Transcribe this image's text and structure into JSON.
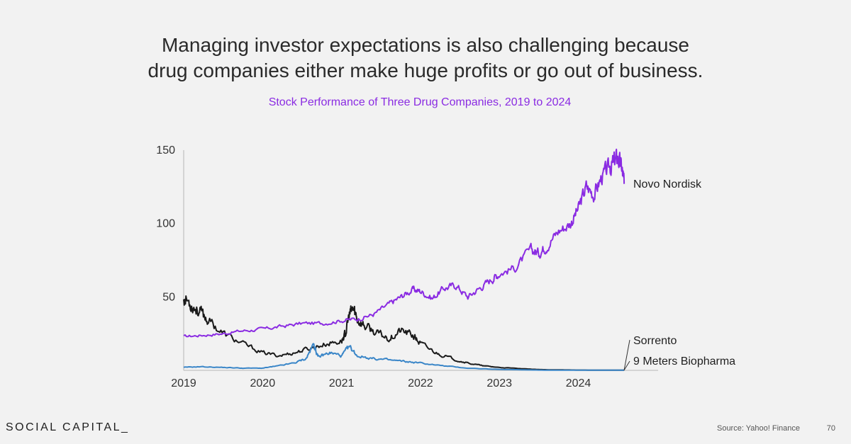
{
  "headline": {
    "line1": "Managing investor expectations is also challenging because",
    "line2": "drug companies either make huge profits or go out of business."
  },
  "footer": {
    "brand": "SOCIAL CAPITAL_",
    "source": "Source: Yahoo! Finance",
    "page": "70"
  },
  "colors": {
    "novo": "#8a2be2",
    "sorrento": "#1a1a1a",
    "nine_meters": "#3a86c8",
    "title": "#8a2be2"
  },
  "chart_data": {
    "type": "line",
    "title": "Stock Performance of Three Drug Companies, 2019 to 2024",
    "xlabel": "",
    "ylabel": "",
    "xlim": [
      2019,
      2025
    ],
    "ylim": [
      0,
      150
    ],
    "x_ticks": [
      "2019",
      "2020",
      "2021",
      "2022",
      "2023",
      "2024"
    ],
    "y_ticks": [
      "50",
      "100",
      "150"
    ],
    "y_tick_values": [
      50,
      100,
      150
    ],
    "series": [
      {
        "name": "Novo Nordisk",
        "color": "#8a2be2",
        "points": [
          [
            2019.0,
            23
          ],
          [
            2019.25,
            24
          ],
          [
            2019.5,
            25
          ],
          [
            2019.75,
            27
          ],
          [
            2020.0,
            28
          ],
          [
            2020.25,
            30
          ],
          [
            2020.5,
            32
          ],
          [
            2020.75,
            32
          ],
          [
            2021.0,
            34
          ],
          [
            2021.2,
            35
          ],
          [
            2021.4,
            38
          ],
          [
            2021.6,
            45
          ],
          [
            2021.75,
            50
          ],
          [
            2021.9,
            55
          ],
          [
            2022.0,
            54
          ],
          [
            2022.15,
            49
          ],
          [
            2022.3,
            56
          ],
          [
            2022.45,
            58
          ],
          [
            2022.6,
            50
          ],
          [
            2022.75,
            56
          ],
          [
            2022.9,
            62
          ],
          [
            2023.0,
            66
          ],
          [
            2023.2,
            70
          ],
          [
            2023.4,
            82
          ],
          [
            2023.5,
            80
          ],
          [
            2023.6,
            85
          ],
          [
            2023.75,
            95
          ],
          [
            2023.9,
            100
          ],
          [
            2024.0,
            110
          ],
          [
            2024.1,
            125
          ],
          [
            2024.2,
            120
          ],
          [
            2024.3,
            132
          ],
          [
            2024.4,
            138
          ],
          [
            2024.45,
            142
          ],
          [
            2024.5,
            145
          ],
          [
            2024.55,
            138
          ],
          [
            2024.58,
            127
          ]
        ]
      },
      {
        "name": "Sorrento",
        "color": "#1a1a1a",
        "points": [
          [
            2019.0,
            50
          ],
          [
            2019.1,
            45
          ],
          [
            2019.2,
            40
          ],
          [
            2019.3,
            35
          ],
          [
            2019.5,
            25
          ],
          [
            2019.75,
            18
          ],
          [
            2020.0,
            12
          ],
          [
            2020.2,
            10
          ],
          [
            2020.4,
            12
          ],
          [
            2020.6,
            15
          ],
          [
            2020.8,
            18
          ],
          [
            2021.0,
            20
          ],
          [
            2021.05,
            25
          ],
          [
            2021.1,
            38
          ],
          [
            2021.15,
            42
          ],
          [
            2021.2,
            35
          ],
          [
            2021.3,
            30
          ],
          [
            2021.45,
            25
          ],
          [
            2021.6,
            22
          ],
          [
            2021.75,
            27
          ],
          [
            2021.9,
            24
          ],
          [
            2022.0,
            18
          ],
          [
            2022.2,
            12
          ],
          [
            2022.4,
            8
          ],
          [
            2022.6,
            5
          ],
          [
            2022.8,
            3
          ],
          [
            2023.0,
            2
          ],
          [
            2023.3,
            1
          ],
          [
            2023.6,
            0.4
          ],
          [
            2024.0,
            0.2
          ],
          [
            2024.58,
            0.1
          ]
        ]
      },
      {
        "name": "9 Meters Biopharma",
        "color": "#3a86c8",
        "points": [
          [
            2019.0,
            2
          ],
          [
            2019.2,
            2.5
          ],
          [
            2019.5,
            2
          ],
          [
            2019.75,
            1.5
          ],
          [
            2020.0,
            1.5
          ],
          [
            2020.2,
            3
          ],
          [
            2020.4,
            5
          ],
          [
            2020.55,
            8
          ],
          [
            2020.65,
            18
          ],
          [
            2020.7,
            9
          ],
          [
            2020.85,
            12
          ],
          [
            2021.0,
            10
          ],
          [
            2021.1,
            16
          ],
          [
            2021.2,
            10
          ],
          [
            2021.4,
            8
          ],
          [
            2021.6,
            7
          ],
          [
            2021.8,
            6
          ],
          [
            2022.0,
            5
          ],
          [
            2022.3,
            3
          ],
          [
            2022.6,
            1.5
          ],
          [
            2023.0,
            0.6
          ],
          [
            2023.5,
            0.2
          ],
          [
            2024.0,
            0.1
          ],
          [
            2024.58,
            0.1
          ]
        ]
      }
    ],
    "annotations": [
      "Novo Nordisk",
      "Sorrento",
      "9 Meters Biopharma"
    ]
  }
}
